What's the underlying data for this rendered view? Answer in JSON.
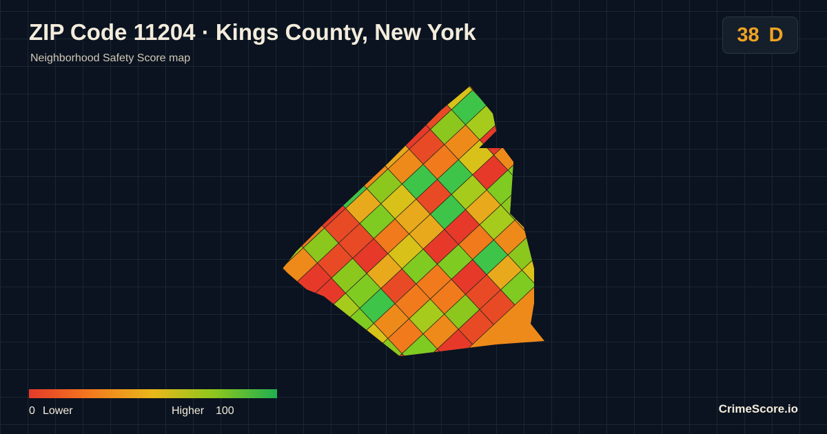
{
  "header": {
    "title": "ZIP Code 11204 · Kings County, New York",
    "subtitle": "Neighborhood Safety Score map"
  },
  "score": {
    "value": 38,
    "grade": "D"
  },
  "legend": {
    "min": 0,
    "min_label": "Lower",
    "max_label": "Higher",
    "max": 100
  },
  "brand": "CrimeScore.io"
}
